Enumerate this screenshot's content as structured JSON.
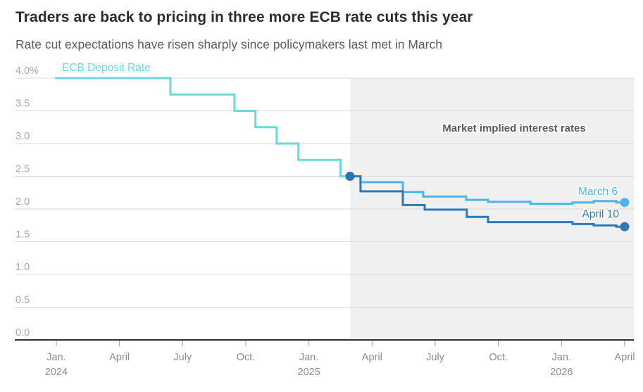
{
  "title": "Traders are back to pricing in three more ECB rate cuts this year",
  "subtitle": "Rate cut expectations have risen sharply since policymakers last met in March",
  "chart_data": {
    "type": "line",
    "title": "Traders are back to pricing in three more ECB rate cuts this year",
    "subtitle": "Rate cut expectations have risen sharply since policymakers last met in March",
    "ylabel": "",
    "xlabel": "",
    "ylim": [
      0.0,
      4.0
    ],
    "y_axis": {
      "tick_labels": [
        "4.0%",
        "3.5",
        "3.0",
        "2.5",
        "2.0",
        "1.5",
        "1.0",
        "0.5",
        "0.0"
      ],
      "tick_values": [
        4.0,
        3.5,
        3.0,
        2.5,
        2.0,
        1.5,
        1.0,
        0.5,
        0.0
      ]
    },
    "x_axis": {
      "unit": "months since Jan 2024",
      "ticks": [
        {
          "m": 0,
          "label": "Jan.",
          "year": "2024"
        },
        {
          "m": 3,
          "label": "April",
          "year": ""
        },
        {
          "m": 6,
          "label": "July",
          "year": ""
        },
        {
          "m": 9,
          "label": "Oct.",
          "year": ""
        },
        {
          "m": 12,
          "label": "Jan.",
          "year": "2025"
        },
        {
          "m": 15,
          "label": "April",
          "year": ""
        },
        {
          "m": 18,
          "label": "July",
          "year": ""
        },
        {
          "m": 21,
          "label": "Oct.",
          "year": ""
        },
        {
          "m": 24,
          "label": "Jan.",
          "year": "2026"
        },
        {
          "m": 27,
          "label": "April",
          "year": ""
        }
      ]
    },
    "shading": {
      "label": "Market implied interest rates",
      "start_m": 13.95,
      "end_m": 27.45,
      "top_value": 4.0,
      "bottom_value": 0.0
    },
    "series": [
      {
        "name": "ECB Deposit Rate",
        "color": "#68dada",
        "end_dot": false,
        "steps": [
          [
            -0.06,
            4.0
          ],
          [
            5.42,
            3.75
          ],
          [
            8.46,
            3.5
          ],
          [
            9.46,
            3.25
          ],
          [
            10.47,
            3.0
          ],
          [
            11.5,
            2.75
          ],
          [
            13.5,
            2.5
          ],
          [
            13.95,
            2.5
          ]
        ]
      },
      {
        "name": "March 6",
        "color": "#4db4ee",
        "end_dot": true,
        "steps": [
          [
            13.95,
            2.5
          ],
          [
            14.45,
            2.41
          ],
          [
            16.46,
            2.26
          ],
          [
            17.43,
            2.19
          ],
          [
            19.47,
            2.14
          ],
          [
            20.51,
            2.11
          ],
          [
            22.52,
            2.08
          ],
          [
            24.52,
            2.1
          ],
          [
            25.53,
            2.12
          ],
          [
            26.6,
            2.1
          ],
          [
            27.0,
            2.1
          ]
        ]
      },
      {
        "name": "April 10",
        "color": "#2e78b6",
        "end_dot": true,
        "steps": [
          [
            13.95,
            2.5
          ],
          [
            14.45,
            2.27
          ],
          [
            16.46,
            2.06
          ],
          [
            17.5,
            1.99
          ],
          [
            19.5,
            1.88
          ],
          [
            20.51,
            1.8
          ],
          [
            24.52,
            1.77
          ],
          [
            25.53,
            1.75
          ],
          [
            26.6,
            1.73
          ],
          [
            27.0,
            1.73
          ]
        ]
      }
    ],
    "junction_dot": {
      "m": 13.95,
      "v": 2.5,
      "color": "#2b74b3"
    },
    "colors": {
      "background": "#ffffff",
      "shading": "#f0f0f0",
      "gridline": "#d9d9d9",
      "axis_line": "#2f3338",
      "x_tick_mark": "#999999",
      "y_tick_label": "#a6a6a6",
      "x_tick_label": "#8c8c8c",
      "annotation": "#595959",
      "teal": "#68dada",
      "light_blue": "#4db4ee",
      "dark_blue": "#2e78b6"
    },
    "legend_position": "inline-labels",
    "grid": true
  }
}
